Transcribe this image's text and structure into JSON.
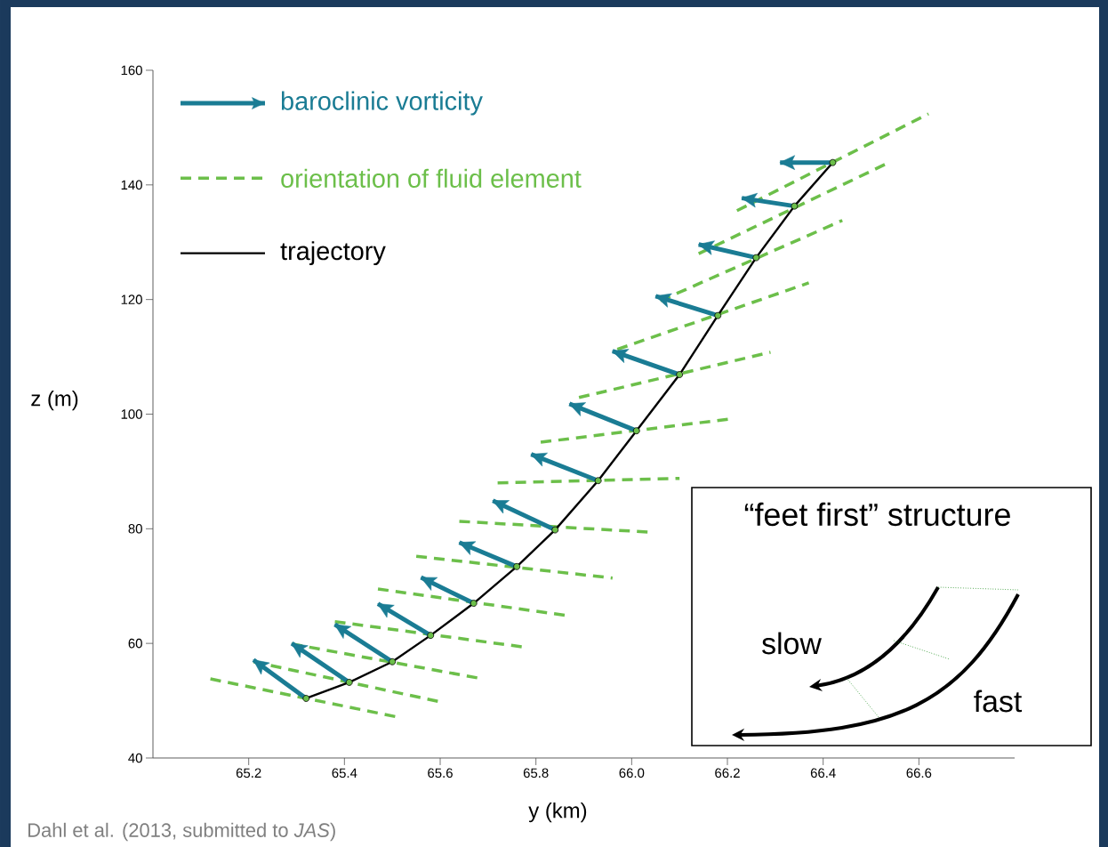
{
  "chart_data": {
    "type": "line",
    "xlabel": "y (km)",
    "ylabel": "z (m)",
    "xlim": [
      65.0,
      66.8
    ],
    "ylim": [
      40,
      160
    ],
    "xticks": [
      65.2,
      65.4,
      65.6,
      65.8,
      {
        "value": 66.0,
        "label": "66.0"
      },
      66.2,
      66.4,
      66.6
    ],
    "yticks": [
      40,
      60,
      80,
      100,
      120,
      140,
      160
    ],
    "legend": "top left",
    "series": [
      {
        "name": "baroclinic vorticity",
        "color": "#1a7c94",
        "x": [
          65.32,
          65.21,
          null,
          65.41,
          65.29,
          null,
          65.5,
          65.38,
          null,
          65.58,
          65.47,
          null,
          65.67,
          65.56,
          null,
          65.76,
          65.64,
          null,
          65.84,
          65.71,
          null,
          65.93,
          65.79,
          null,
          66.01,
          65.87,
          null,
          66.1,
          65.96,
          null,
          66.18,
          66.05,
          null,
          66.26,
          66.14,
          null,
          66.34,
          66.23,
          null,
          66.42,
          66.31
        ],
        "values": [
          50.4,
          57.1,
          null,
          53.2,
          60.0,
          null,
          56.8,
          63.3,
          null,
          61.4,
          66.9,
          null,
          67.0,
          71.5,
          null,
          73.4,
          77.6,
          null,
          79.8,
          84.9,
          null,
          88.4,
          93.0,
          null,
          97.1,
          101.8,
          null,
          106.9,
          111.0,
          null,
          117.2,
          120.6,
          null,
          127.3,
          129.6,
          null,
          136.3,
          137.7,
          null,
          143.9,
          143.9
        ]
      },
      {
        "name": "orientation of fluid element",
        "color": "#6cbf4a",
        "line_style": "dashed",
        "x": [
          65.12,
          65.52,
          null,
          65.21,
          65.6,
          null,
          65.29,
          65.69,
          null,
          65.38,
          65.78,
          null,
          65.47,
          65.87,
          null,
          65.55,
          65.96,
          null,
          65.64,
          66.04,
          null,
          65.72,
          66.1,
          null,
          65.81,
          66.21,
          null,
          65.89,
          66.29,
          null,
          65.97,
          66.37,
          null,
          66.06,
          66.44,
          null,
          66.14,
          66.54,
          null,
          66.22,
          66.62
        ],
        "values": [
          53.8,
          47.0,
          null,
          56.8,
          49.8,
          null,
          59.9,
          53.8,
          null,
          63.8,
          59.3,
          null,
          69.5,
          64.8,
          null,
          75.2,
          71.4,
          null,
          81.3,
          79.4,
          null,
          88.0,
          88.8,
          null,
          95.1,
          99.2,
          null,
          102.9,
          110.8,
          null,
          111.3,
          122.9,
          null,
          119.8,
          133.8,
          null,
          128.0,
          144.0,
          null,
          135.5,
          152.4
        ]
      },
      {
        "name": "trajectory",
        "color": "#000000",
        "marker": "circle",
        "line_style": "solid",
        "x": [
          65.32,
          65.41,
          65.5,
          65.58,
          65.67,
          65.76,
          65.84,
          65.93,
          66.01,
          66.1,
          66.18,
          66.26,
          66.34,
          66.42
        ],
        "values": [
          50.4,
          53.2,
          56.8,
          61.4,
          67.0,
          73.4,
          79.8,
          88.4,
          97.1,
          106.9,
          117.2,
          127.3,
          136.3,
          143.9
        ]
      }
    ],
    "annotations": [
      "“feet first” structure",
      "slow",
      "fast",
      "Dahl et al. (2013, submitted to *JAS*)"
    ]
  }
}
